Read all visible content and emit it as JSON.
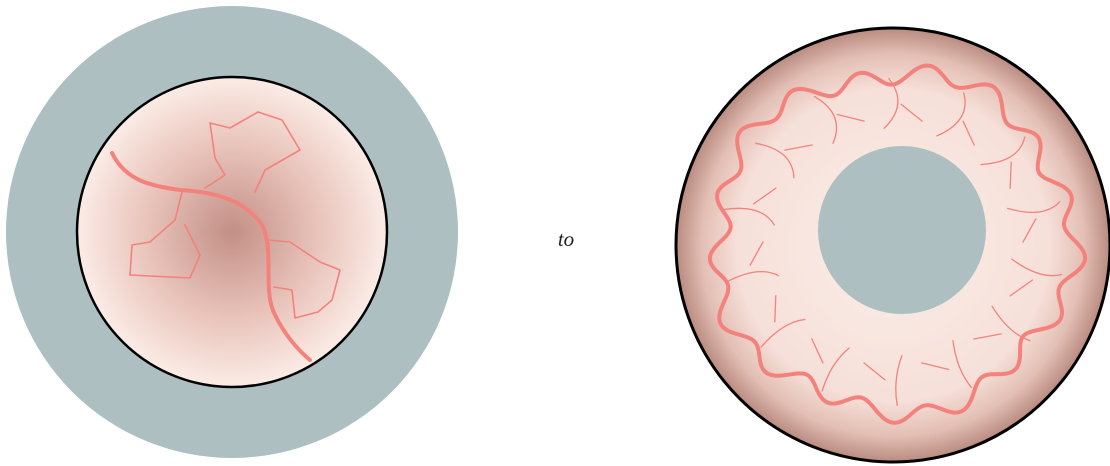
{
  "label": "to"
}
